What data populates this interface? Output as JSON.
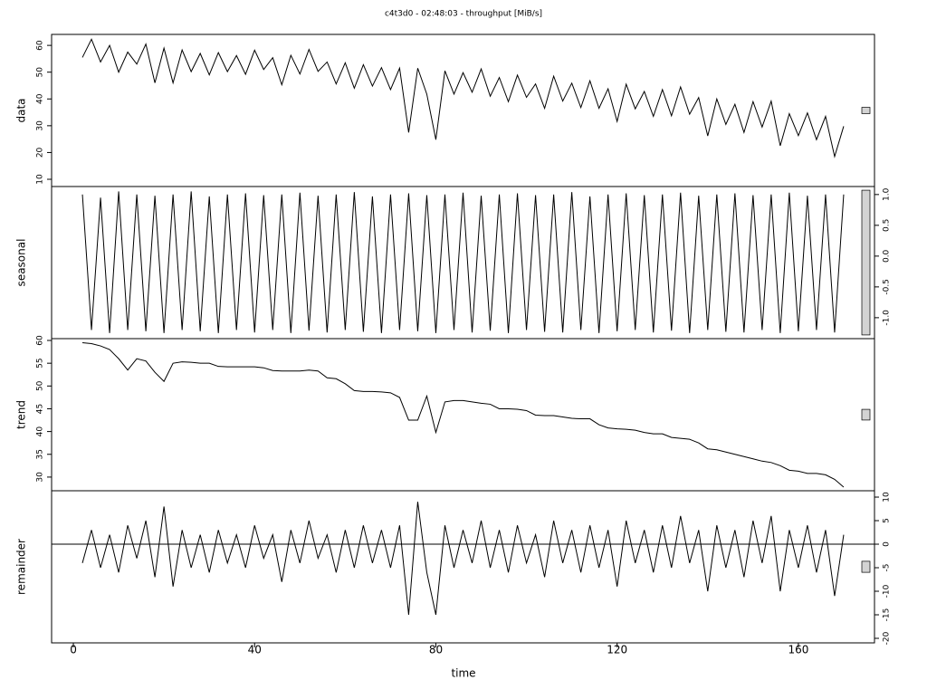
{
  "chart_data": {
    "type": "stl",
    "title": "c4t3d0 - 02:48:03 - throughput [MiB/s]",
    "xlabel": "time",
    "xlim": [
      -4.8,
      176.8
    ],
    "xticks": [
      0,
      40,
      80,
      120,
      160
    ],
    "range_bar": 2.35,
    "color": "#000000",
    "x": [
      2,
      4,
      6,
      8,
      10,
      12,
      14,
      16,
      18,
      20,
      22,
      24,
      26,
      28,
      30,
      32,
      34,
      36,
      38,
      40,
      42,
      44,
      46,
      48,
      50,
      52,
      54,
      56,
      58,
      60,
      62,
      64,
      66,
      68,
      70,
      72,
      74,
      76,
      78,
      80,
      82,
      84,
      86,
      88,
      90,
      92,
      94,
      96,
      98,
      100,
      102,
      104,
      106,
      108,
      110,
      112,
      114,
      116,
      118,
      120,
      122,
      124,
      126,
      128,
      130,
      132,
      134,
      136,
      138,
      140,
      142,
      144,
      146,
      148,
      150,
      152,
      154,
      156,
      158,
      160,
      162,
      164,
      166,
      168,
      170
    ],
    "panels": [
      {
        "name": "data",
        "tick_side": "left",
        "ylim": [
          7.3,
          64.1
        ],
        "yticks": [
          10,
          20,
          30,
          40,
          50,
          60
        ],
        "values": [
          55.5,
          62.3,
          53.8,
          60,
          50,
          57.5,
          53,
          60.5,
          46,
          59,
          46,
          58.3,
          50.2,
          57,
          49,
          57.3,
          50.2,
          56.2,
          49.2,
          58.2,
          51,
          55.4,
          45.3,
          56.3,
          49.3,
          58.5,
          50.3,
          53.8,
          45.6,
          53.5,
          44,
          52.8,
          44.8,
          51.7,
          43.5,
          51.5,
          27.5,
          51.5,
          41.8,
          24.8,
          50.5,
          41.8,
          49.8,
          42.5,
          51.2,
          41,
          48,
          39,
          48.9,
          40.6,
          45.6,
          36.5,
          48.5,
          39.2,
          45.9,
          36.8,
          46.8,
          36.5,
          43.8,
          31.6,
          45.5,
          36.3,
          42.8,
          33.5,
          43.5,
          33.7,
          44.5,
          34.3,
          40.5,
          26.2,
          40,
          30.5,
          38,
          27.5,
          39,
          29.5,
          39.2,
          22.5,
          34.5,
          26.3,
          34.8,
          24.8,
          33.5,
          18.5,
          29.8
        ]
      },
      {
        "name": "seasonal",
        "tick_side": "right",
        "ylim": [
          -1.34,
          1.13
        ],
        "yticks": [
          {
            "value": 1,
            "label": "1.0"
          },
          {
            "value": 0.5,
            "label": "0.5"
          },
          {
            "value": 0,
            "label": "0.0"
          },
          {
            "value": -0.5,
            "label": "-0.5"
          },
          {
            "value": -1,
            "label": "-1.0"
          }
        ],
        "values": [
          1.0,
          -1.2,
          0.95,
          -1.25,
          1.05,
          -1.2,
          1.0,
          -1.22,
          0.98,
          -1.25,
          1.0,
          -1.2,
          1.05,
          -1.22,
          0.97,
          -1.25,
          1.0,
          -1.2,
          1.02,
          -1.24,
          0.99,
          -1.2,
          1.0,
          -1.25,
          1.03,
          -1.21,
          0.98,
          -1.24,
          1.0,
          -1.2,
          1.04,
          -1.23,
          0.97,
          -1.25,
          1.0,
          -1.2,
          1.02,
          -1.22,
          0.99,
          -1.25,
          1.0,
          -1.2,
          1.03,
          -1.24,
          0.98,
          -1.21,
          1.0,
          -1.25,
          1.02,
          -1.2,
          0.99,
          -1.23,
          1.0,
          -1.24,
          1.04,
          -1.2,
          0.97,
          -1.25,
          1.0,
          -1.22,
          1.02,
          -1.2,
          0.99,
          -1.24,
          1.0,
          -1.21,
          1.03,
          -1.25,
          0.98,
          -1.2,
          1.0,
          -1.23,
          1.02,
          -1.24,
          0.99,
          -1.2,
          1.0,
          -1.25,
          1.03,
          -1.22,
          0.98,
          -1.2,
          1.0,
          -1.24,
          1.0
        ]
      },
      {
        "name": "trend",
        "tick_side": "left",
        "ylim": [
          27.0,
          60.4
        ],
        "yticks": [
          30,
          35,
          40,
          45,
          50,
          55,
          60
        ],
        "values": [
          59.5,
          59.3,
          58.8,
          58,
          56,
          53.5,
          56,
          55.5,
          53,
          51,
          55,
          55.3,
          55.2,
          55,
          55,
          54.3,
          54.2,
          54.2,
          54.2,
          54.2,
          54,
          53.4,
          53.3,
          53.3,
          53.3,
          53.5,
          53.3,
          51.8,
          51.6,
          50.5,
          49,
          48.8,
          48.8,
          48.7,
          48.5,
          47.5,
          42.5,
          42.5,
          47.8,
          39.8,
          46.5,
          46.8,
          46.8,
          46.5,
          46.2,
          46,
          45,
          45,
          44.9,
          44.6,
          43.6,
          43.5,
          43.5,
          43.2,
          42.9,
          42.8,
          42.8,
          41.5,
          40.8,
          40.6,
          40.5,
          40.3,
          39.8,
          39.5,
          39.5,
          38.7,
          38.5,
          38.3,
          37.5,
          36.2,
          36,
          35.5,
          35,
          34.5,
          34,
          33.5,
          33.2,
          32.5,
          31.5,
          31.3,
          30.8,
          30.8,
          30.5,
          29.5,
          27.8
        ]
      },
      {
        "name": "remainder",
        "tick_side": "right",
        "ylim": [
          -20.96,
          11.35
        ],
        "yticks": [
          10,
          5,
          0,
          -5,
          -10,
          -15,
          -20
        ],
        "values": [
          -4,
          3,
          -5,
          2,
          -6,
          4,
          -3,
          5,
          -7,
          8,
          -9,
          3,
          -5,
          2,
          -6,
          3,
          -4,
          2,
          -5,
          4,
          -3,
          2,
          -8,
          3,
          -4,
          5,
          -3,
          2,
          -6,
          3,
          -5,
          4,
          -4,
          3,
          -5,
          4,
          -15,
          9,
          -6,
          -15,
          4,
          -5,
          3,
          -4,
          5,
          -5,
          3,
          -6,
          4,
          -4,
          2,
          -7,
          5,
          -4,
          3,
          -6,
          4,
          -5,
          3,
          -9,
          5,
          -4,
          3,
          -6,
          4,
          -5,
          6,
          -4,
          3,
          -10,
          4,
          -5,
          3,
          -7,
          5,
          -4,
          6,
          -10,
          3,
          -5,
          4,
          -6,
          3,
          -11,
          2
        ]
      }
    ]
  }
}
